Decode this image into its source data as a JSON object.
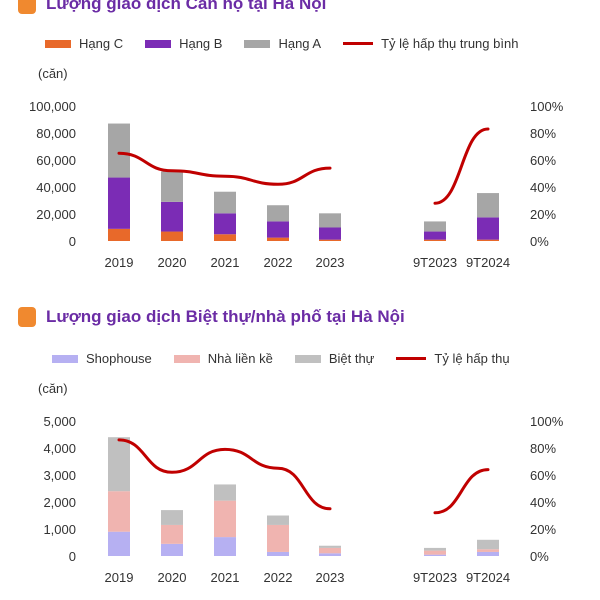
{
  "chart_data": [
    {
      "type": "bar",
      "title": "Lượng giao dịch Căn hộ tại Hà Nội",
      "unit_label": "(căn)",
      "categories": [
        "2019",
        "2020",
        "2021",
        "2022",
        "2023",
        "",
        "9T2023",
        "9T2024"
      ],
      "series": [
        {
          "name": "Hạng C",
          "color": "#e8692a",
          "values": [
            9000,
            7000,
            5000,
            2500,
            1000,
            null,
            1000,
            1000
          ]
        },
        {
          "name": "Hạng B",
          "color": "#7b2cb5",
          "values": [
            38000,
            22000,
            15500,
            12000,
            9000,
            null,
            6000,
            16500
          ]
        },
        {
          "name": "Hạng A",
          "color": "#a6a6a6",
          "values": [
            40000,
            22500,
            16000,
            12000,
            10500,
            null,
            7500,
            18000
          ]
        }
      ],
      "line": {
        "name": "Tỷ lệ hấp thụ trung bình",
        "color": "#c00000",
        "values": [
          65,
          52,
          48,
          42,
          54,
          null,
          28,
          83
        ]
      },
      "y_left": {
        "ticks": [
          "0",
          "20,000",
          "40,000",
          "60,000",
          "80,000",
          "100,000"
        ],
        "min": 0,
        "max": 100000
      },
      "y_right": {
        "ticks": [
          "0%",
          "20%",
          "40%",
          "60%",
          "80%",
          "100%"
        ],
        "min": 0,
        "max": 100
      },
      "stacked": true
    },
    {
      "type": "bar",
      "title": "Lượng giao dịch Biệt thự/nhà phố tại Hà Nội",
      "unit_label": "(căn)",
      "categories": [
        "2019",
        "2020",
        "2021",
        "2022",
        "2023",
        "",
        "9T2023",
        "9T2024"
      ],
      "series": [
        {
          "name": "Shophouse",
          "color": "#b6b0f2",
          "values": [
            900,
            450,
            700,
            150,
            100,
            null,
            50,
            150
          ]
        },
        {
          "name": "Nhà liền kề",
          "color": "#f0b4b0",
          "values": [
            1500,
            700,
            1350,
            1000,
            200,
            null,
            150,
            100
          ]
        },
        {
          "name": "Biệt thự",
          "color": "#c0c0c0",
          "values": [
            2000,
            550,
            600,
            350,
            80,
            null,
            100,
            350
          ]
        }
      ],
      "line": {
        "name": "Tỷ lệ hấp thụ",
        "color": "#c00000",
        "values": [
          86,
          62,
          79,
          65,
          35,
          null,
          32,
          64
        ]
      },
      "y_left": {
        "ticks": [
          "0",
          "1,000",
          "2,000",
          "3,000",
          "4,000",
          "5,000"
        ],
        "min": 0,
        "max": 5000
      },
      "y_right": {
        "ticks": [
          "0%",
          "20%",
          "40%",
          "60%",
          "80%",
          "100%"
        ],
        "min": 0,
        "max": 100
      },
      "stacked": true
    }
  ]
}
